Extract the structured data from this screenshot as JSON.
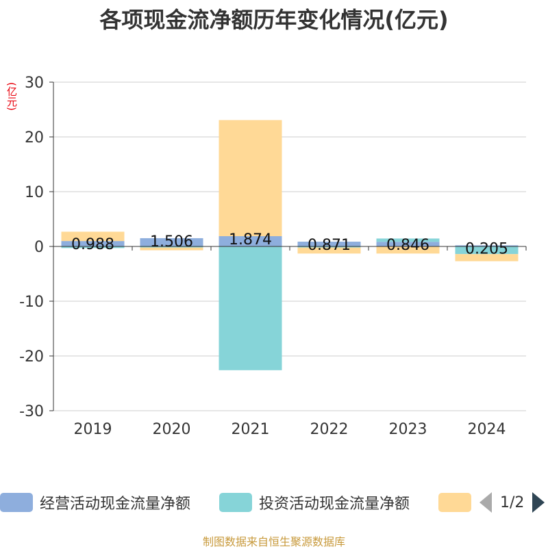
{
  "title": "各项现金流净额历年变化情况(亿元)",
  "unit_label": "(亿元)",
  "source": "制图数据来自恒生聚源数据库",
  "pager": "1/2",
  "colors": {
    "operating": "#8eaedd",
    "investing": "#86d4d8",
    "financing": "#ffd996",
    "axis": "#333333",
    "grid": "#cccccc"
  },
  "chart_data": {
    "type": "bar",
    "stacked": true,
    "categories": [
      "2019",
      "2020",
      "2021",
      "2022",
      "2023",
      "2024"
    ],
    "ylim": [
      -30,
      30
    ],
    "yticks": [
      30,
      20,
      10,
      0,
      -10,
      -20,
      -30
    ],
    "grid": true,
    "legend_position": "bottom",
    "series": [
      {
        "name": "经营活动现金流量净额",
        "values": [
          0.988,
          1.506,
          1.874,
          0.871,
          0.846,
          0.205
        ],
        "show_labels": true,
        "label_texts": [
          "0.988",
          "1.506",
          "1.874",
          "0.871",
          "0.846",
          "0.205"
        ]
      },
      {
        "name": "投资活动现金流量净额",
        "values": [
          -0.3,
          -0.2,
          -22.6,
          -0.2,
          0.6,
          -1.4
        ]
      },
      {
        "name": "",
        "values": [
          1.7,
          -0.5,
          21.2,
          -1.1,
          -1.3,
          -1.3
        ]
      }
    ]
  }
}
